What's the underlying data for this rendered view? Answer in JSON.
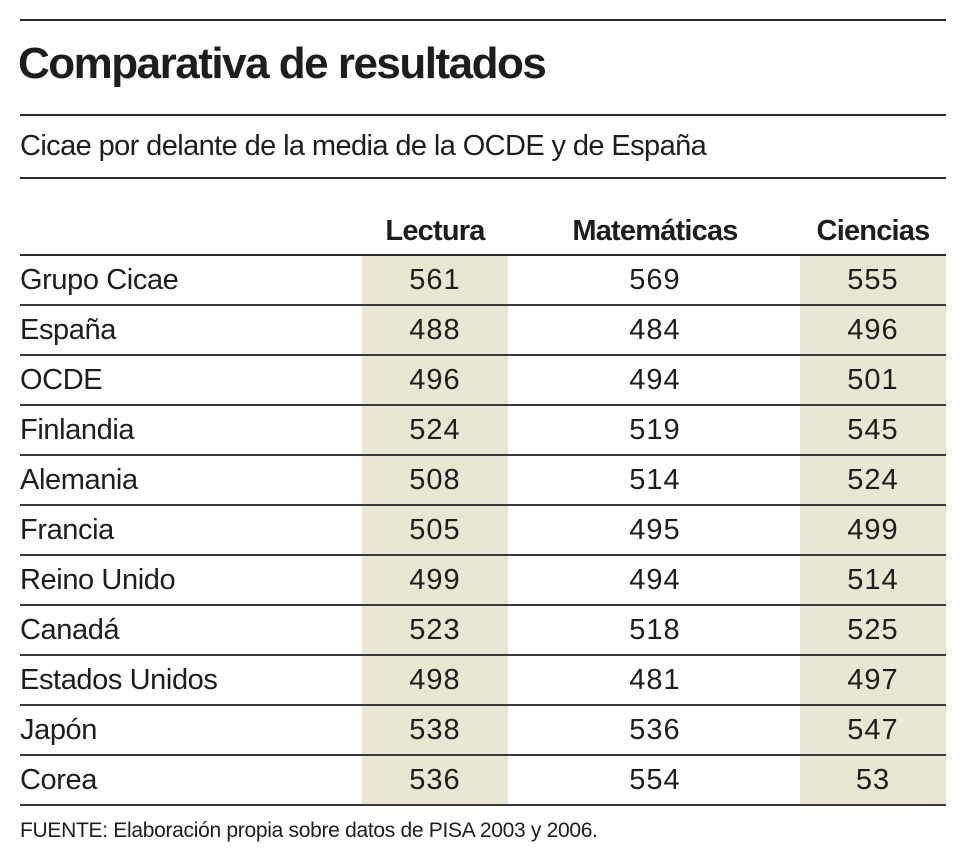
{
  "title": "Comparativa de resultados",
  "subtitle": "Cicae por delante de la media de la OCDE y de España",
  "footnote": "FUENTE: Elaboración propia sobre datos de PISA 2003 y 2006.",
  "colors": {
    "shade": "#e9e7d4",
    "text": "#1d1d1b",
    "rule": "#2b2b2b"
  },
  "chart_data": {
    "type": "table",
    "title": "Comparativa de resultados",
    "subtitle": "Cicae por delante de la media de la OCDE y de España",
    "columns": [
      "Lectura",
      "Matemáticas",
      "Ciencias"
    ],
    "rows": [
      {
        "name": "Grupo Cicae",
        "values": [
          "561",
          "569",
          "555"
        ]
      },
      {
        "name": "España",
        "values": [
          "488",
          "484",
          "496"
        ]
      },
      {
        "name": "OCDE",
        "values": [
          "496",
          "494",
          "501"
        ]
      },
      {
        "name": "Finlandia",
        "values": [
          "524",
          "519",
          "545"
        ]
      },
      {
        "name": "Alemania",
        "values": [
          "508",
          "514",
          "524"
        ]
      },
      {
        "name": "Francia",
        "values": [
          "505",
          "495",
          "499"
        ]
      },
      {
        "name": "Reino Unido",
        "values": [
          "499",
          "494",
          "514"
        ]
      },
      {
        "name": "Canadá",
        "values": [
          "523",
          "518",
          "525"
        ]
      },
      {
        "name": "Estados Unidos",
        "values": [
          "498",
          "481",
          "497"
        ]
      },
      {
        "name": "Japón",
        "values": [
          "538",
          "536",
          "547"
        ]
      },
      {
        "name": "Corea",
        "values": [
          "536",
          "554",
          "53"
        ]
      }
    ],
    "shaded_columns": [
      "Lectura",
      "Ciencias"
    ]
  }
}
